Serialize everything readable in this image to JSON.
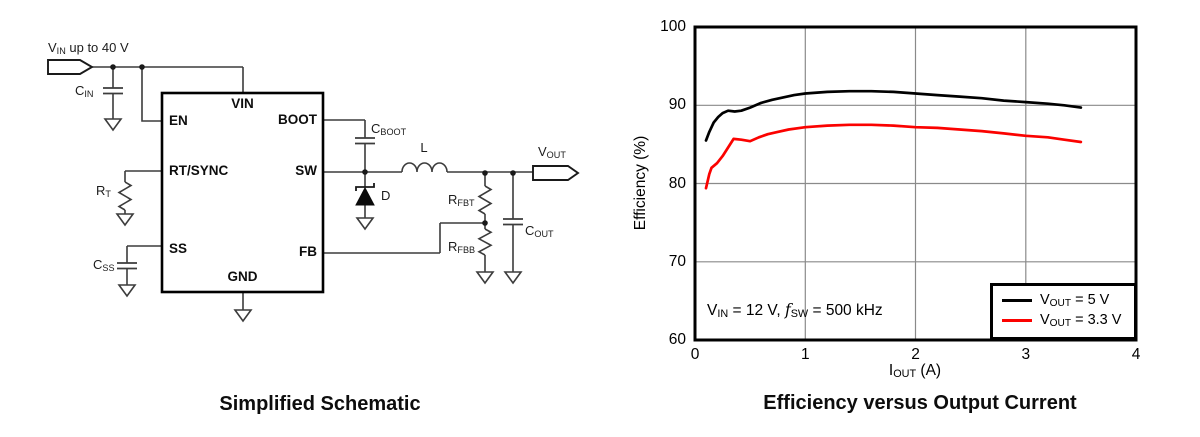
{
  "schematic": {
    "caption": "Simplified Schematic",
    "input_label": {
      "main": "V",
      "sub": "IN",
      "rest": " up to 40 V"
    },
    "ic_pins": {
      "vin": "VIN",
      "en": "EN",
      "rtsync": "RT/SYNC",
      "ss": "SS",
      "boot": "BOOT",
      "sw": "SW",
      "fb": "FB",
      "gnd": "GND"
    },
    "components": {
      "cin": {
        "main": "C",
        "sub": "IN"
      },
      "rt": {
        "main": "R",
        "sub": "T"
      },
      "css": {
        "main": "C",
        "sub": "SS"
      },
      "cboot": {
        "main": "C",
        "sub": "BOOT"
      },
      "inductor": "L",
      "diode": "D",
      "rfbt": {
        "main": "R",
        "sub": "FBT"
      },
      "rfbb": {
        "main": "R",
        "sub": "FBB"
      },
      "cout": {
        "main": "C",
        "sub": "OUT"
      },
      "vout": {
        "main": "V",
        "sub": "OUT"
      }
    }
  },
  "chart": {
    "caption": "Efficiency versus Output Current",
    "ylabel": "Efficiency (%)",
    "xlabel": {
      "main": "I",
      "sub": "OUT",
      "rest": " (A)"
    },
    "annotation": {
      "p1": "V",
      "s1": "IN",
      "p2": " = 12 V, ",
      "f": "f",
      "s2": "SW",
      "p3": " = 500 kHz"
    },
    "legend": [
      {
        "main": "V",
        "sub": "OUT",
        "rest": " = 5 V"
      },
      {
        "main": "V",
        "sub": "OUT",
        "rest": " = 3.3 V"
      }
    ]
  },
  "chart_data": {
    "type": "line",
    "title": "Efficiency versus Output Current",
    "xlabel": "IOUT (A)",
    "ylabel": "Efficiency (%)",
    "xlim": [
      0,
      4
    ],
    "ylim": [
      60,
      100
    ],
    "xticks": [
      0,
      1,
      2,
      3,
      4
    ],
    "yticks": [
      60,
      70,
      80,
      90,
      100
    ],
    "grid": true,
    "grid_color": "#8a8a8a",
    "legend_position": "lower right",
    "annotation": "VIN = 12 V, fSW = 500 kHz",
    "series": [
      {
        "name": "VOUT = 5 V",
        "color": "#000000",
        "points": [
          [
            0.1,
            85.5
          ],
          [
            0.13,
            86.6
          ],
          [
            0.17,
            87.8
          ],
          [
            0.21,
            88.5
          ],
          [
            0.25,
            89.0
          ],
          [
            0.3,
            89.3
          ],
          [
            0.36,
            89.2
          ],
          [
            0.42,
            89.3
          ],
          [
            0.5,
            89.7
          ],
          [
            0.6,
            90.3
          ],
          [
            0.7,
            90.7
          ],
          [
            0.8,
            91.0
          ],
          [
            0.9,
            91.3
          ],
          [
            1.0,
            91.5
          ],
          [
            1.2,
            91.7
          ],
          [
            1.4,
            91.8
          ],
          [
            1.6,
            91.8
          ],
          [
            1.8,
            91.7
          ],
          [
            2.0,
            91.5
          ],
          [
            2.2,
            91.3
          ],
          [
            2.4,
            91.1
          ],
          [
            2.6,
            90.9
          ],
          [
            2.8,
            90.6
          ],
          [
            3.0,
            90.4
          ],
          [
            3.2,
            90.2
          ],
          [
            3.35,
            90.0
          ],
          [
            3.5,
            89.7
          ]
        ]
      },
      {
        "name": "VOUT = 3.3 V",
        "color": "#fb0200",
        "points": [
          [
            0.1,
            79.4
          ],
          [
            0.13,
            81.2
          ],
          [
            0.15,
            82.0
          ],
          [
            0.2,
            82.6
          ],
          [
            0.25,
            83.5
          ],
          [
            0.3,
            84.6
          ],
          [
            0.35,
            85.7
          ],
          [
            0.42,
            85.6
          ],
          [
            0.5,
            85.4
          ],
          [
            0.58,
            85.9
          ],
          [
            0.66,
            86.3
          ],
          [
            0.75,
            86.6
          ],
          [
            0.85,
            86.9
          ],
          [
            1.0,
            87.2
          ],
          [
            1.2,
            87.4
          ],
          [
            1.4,
            87.5
          ],
          [
            1.6,
            87.5
          ],
          [
            1.8,
            87.4
          ],
          [
            2.0,
            87.2
          ],
          [
            2.2,
            87.1
          ],
          [
            2.4,
            86.9
          ],
          [
            2.6,
            86.7
          ],
          [
            2.8,
            86.4
          ],
          [
            3.0,
            86.1
          ],
          [
            3.2,
            85.9
          ],
          [
            3.35,
            85.6
          ],
          [
            3.5,
            85.3
          ]
        ]
      }
    ]
  }
}
